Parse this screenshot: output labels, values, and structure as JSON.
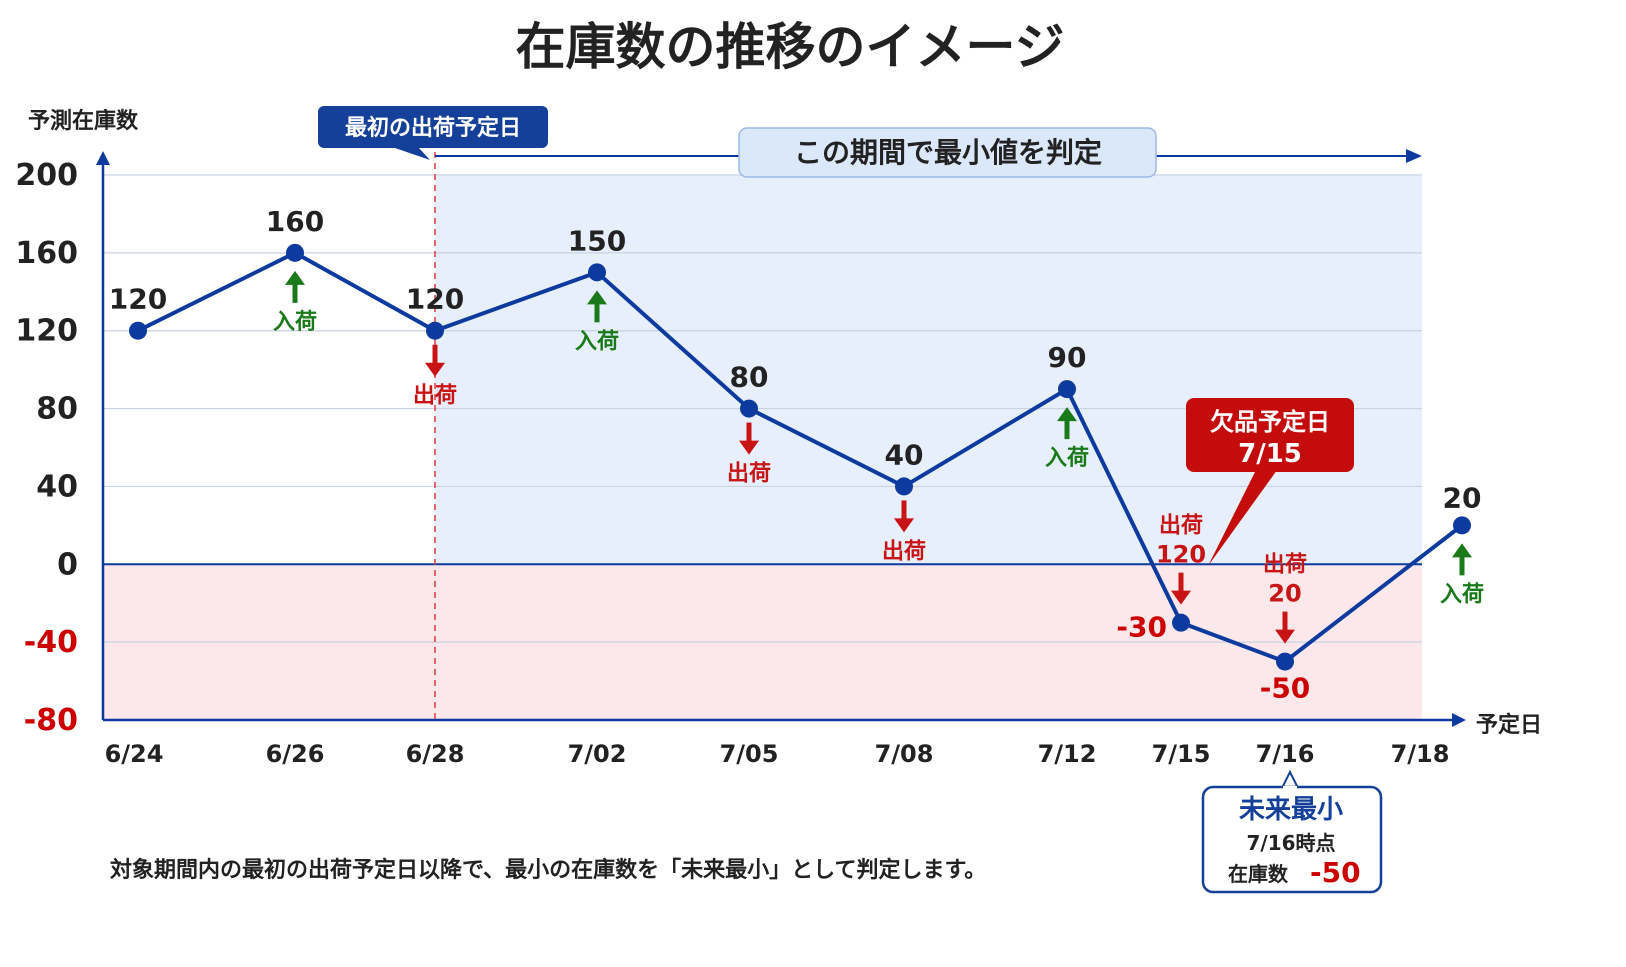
{
  "chart_data": {
    "type": "line",
    "title": "在庫数の推移のイメージ",
    "ylabel": "予測在庫数",
    "xlabel": "予定日",
    "ylim": [
      -80,
      200
    ],
    "yticks": [
      200,
      160,
      120,
      80,
      40,
      0,
      -40,
      -80
    ],
    "grid": true,
    "categories": [
      "6/24",
      "6/26",
      "6/28",
      "7/02",
      "7/05",
      "7/08",
      "7/12",
      "7/15",
      "7/16",
      "7/18"
    ],
    "values": [
      120,
      160,
      120,
      150,
      80,
      40,
      90,
      -30,
      -50,
      20
    ],
    "value_labels": [
      "120",
      "160",
      "120",
      "150",
      "80",
      "40",
      "90",
      "-30",
      "-50",
      "20"
    ],
    "events": [
      {
        "index": 1,
        "kind": "in",
        "label": "入荷"
      },
      {
        "index": 2,
        "kind": "out",
        "label": "出荷"
      },
      {
        "index": 3,
        "kind": "in",
        "label": "入荷"
      },
      {
        "index": 4,
        "kind": "out",
        "label": "出荷"
      },
      {
        "index": 5,
        "kind": "out",
        "label": "出荷"
      },
      {
        "index": 6,
        "kind": "in",
        "label": "入荷"
      },
      {
        "index": 7,
        "kind": "out",
        "label": "出荷",
        "amount": "120"
      },
      {
        "index": 8,
        "kind": "out",
        "label": "出荷",
        "amount": "20"
      },
      {
        "index": 9,
        "kind": "in",
        "label": "入荷"
      }
    ],
    "annotations": {
      "first_shipment_label": "最初の出荷予定日",
      "first_shipment_index": 2,
      "period_label": "この期間で最小値を判定",
      "stockout_title": "欠品予定日",
      "stockout_date": "7/15",
      "min_title": "未来最小",
      "min_time": "7/16時点",
      "min_stock_label": "在庫数",
      "min_value": "-50"
    },
    "colors": {
      "line": "#0d3a9e",
      "point": "#0d3a9e",
      "in": "#1a7a1a",
      "out": "#c81414",
      "positive_bg": "#e6effb",
      "negative_bg": "#fce8ea",
      "zero_line": "#0d3a9e",
      "axis": "#0d3a9e",
      "callout_red": "#c40c0c",
      "callout_blue": "#14409a"
    }
  },
  "caption": "対象期間内の最初の出荷予定日以降で、最小の在庫数を「未来最小」として判定します。"
}
